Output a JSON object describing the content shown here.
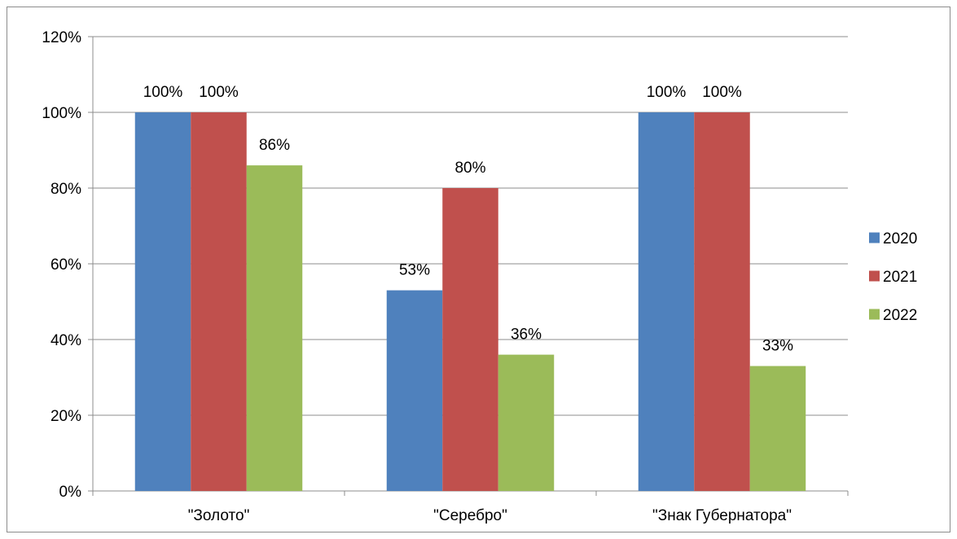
{
  "chart_data": {
    "type": "bar",
    "categories": [
      "\"Золото\"",
      "\"Серебро\"",
      "\"Знак Губернатора\""
    ],
    "series": [
      {
        "name": "2020",
        "color": "#4F81BD",
        "values": [
          100,
          53,
          100
        ]
      },
      {
        "name": "2021",
        "color": "#C0504D",
        "values": [
          100,
          80,
          100
        ]
      },
      {
        "name": "2022",
        "color": "#9BBB59",
        "values": [
          86,
          36,
          33
        ]
      }
    ],
    "data_labels": [
      [
        "100%",
        "53%",
        "100%"
      ],
      [
        "100%",
        "80%",
        "100%"
      ],
      [
        "86%",
        "36%",
        "33%"
      ]
    ],
    "yticks": [
      0,
      20,
      40,
      60,
      80,
      100,
      120
    ],
    "ytick_labels": [
      "0%",
      "20%",
      "40%",
      "60%",
      "80%",
      "100%",
      "120%"
    ],
    "ylim": [
      0,
      120
    ],
    "grid": true,
    "legend_position": "right",
    "title": "",
    "xlabel": "",
    "ylabel": ""
  }
}
